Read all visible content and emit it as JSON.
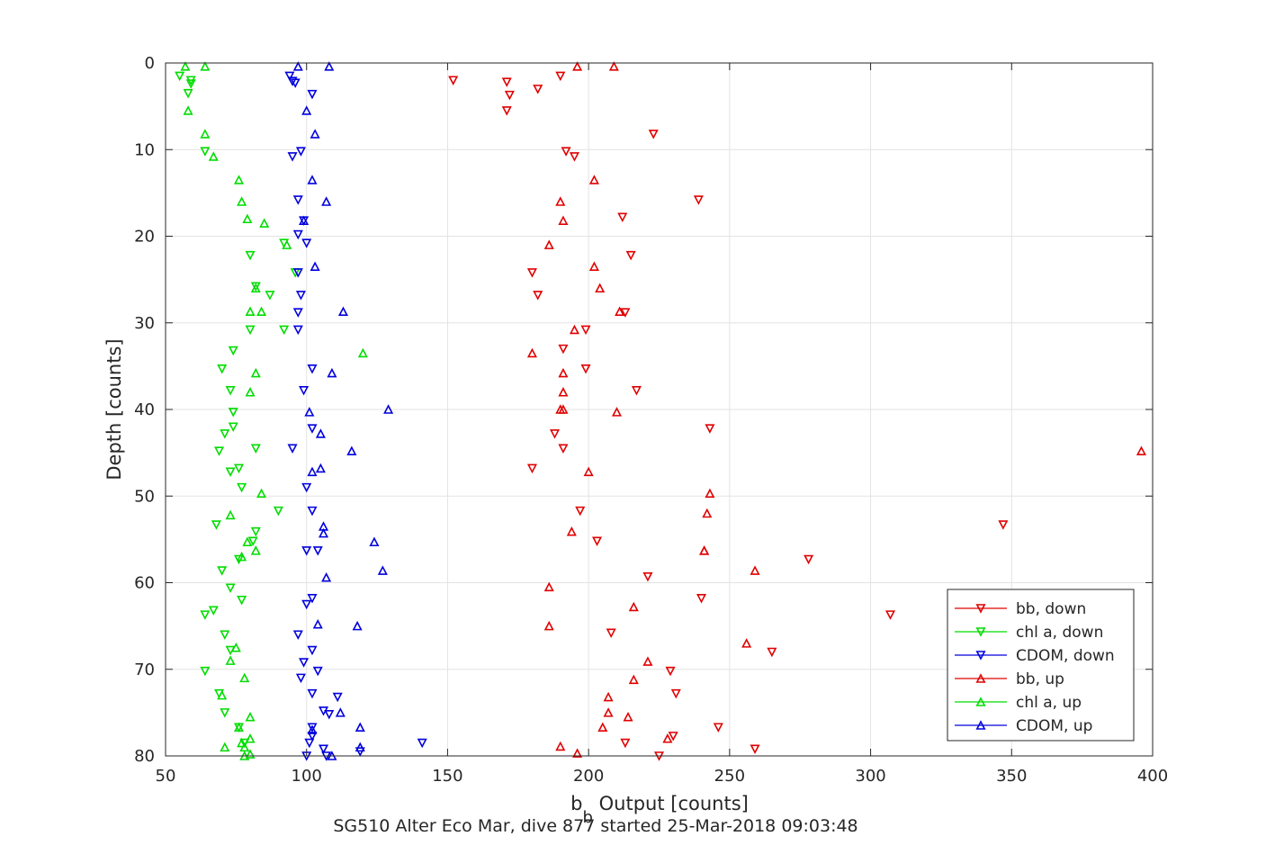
{
  "chart_data": {
    "type": "scatter",
    "title": "",
    "xlabel": "b_b Output [counts]",
    "xlabel_parts": {
      "main": "b",
      "sub": "b",
      "rest": " Output [counts]"
    },
    "ylabel": "Depth [counts]",
    "caption": "SG510 Alter Eco Mar, dive 877 started 25-Mar-2018 09:03:48",
    "xlim": [
      50,
      400
    ],
    "ylim": [
      0,
      80
    ],
    "y_reversed": true,
    "grid": true,
    "legend_position": "bottom-right",
    "x_ticks": [
      50,
      100,
      150,
      200,
      250,
      300,
      350,
      400
    ],
    "y_ticks": [
      0,
      10,
      20,
      30,
      40,
      50,
      60,
      70,
      80
    ],
    "x_tick_labels": [
      "50",
      "100",
      "150",
      "200",
      "250",
      "300",
      "350",
      "400"
    ],
    "y_tick_labels": [
      "0",
      "10",
      "20",
      "30",
      "40",
      "50",
      "60",
      "70",
      "80"
    ],
    "series": [
      {
        "name": "bb, down",
        "color": "#e00000",
        "marker": "triangle-down",
        "x": [
          190,
          152,
          171,
          182,
          172,
          171,
          192,
          195,
          223,
          239,
          212,
          215,
          180,
          182,
          213,
          199,
          191,
          199,
          217,
          188,
          191,
          180,
          243,
          197,
          203,
          347,
          278,
          221,
          240,
          307,
          208,
          265,
          229,
          231,
          230,
          246,
          259,
          225,
          213
        ],
        "y": [
          1.5,
          2,
          2.2,
          3,
          3.7,
          5.5,
          10.2,
          10.8,
          8.2,
          15.8,
          17.8,
          22.2,
          24.2,
          26.8,
          28.8,
          30.8,
          33,
          35.3,
          37.8,
          42.8,
          44.5,
          46.8,
          42.2,
          51.7,
          55.2,
          53.3,
          57.3,
          59.3,
          61.8,
          63.7,
          65.8,
          68,
          70.2,
          72.8,
          77.7,
          76.7,
          79.2,
          80,
          78.5
        ]
      },
      {
        "name": "chl a, down",
        "color": "#00dd00",
        "marker": "triangle-down",
        "x": [
          55,
          59,
          59,
          58,
          64,
          80,
          82,
          92,
          96,
          87,
          92,
          80,
          74,
          70,
          73,
          74,
          71,
          74,
          82,
          69,
          76,
          73,
          77,
          90,
          68,
          81,
          82,
          70,
          76,
          73,
          77,
          64,
          67,
          71,
          73,
          64,
          69,
          71,
          76,
          78
        ],
        "y": [
          1.5,
          2,
          2.4,
          3.5,
          10.2,
          22.2,
          25.8,
          20.8,
          24.2,
          26.8,
          30.8,
          30.8,
          33.2,
          35.3,
          37.8,
          40.3,
          42.8,
          42,
          44.5,
          44.8,
          46.8,
          47.2,
          49,
          51.7,
          53.3,
          55.2,
          54.1,
          58.6,
          57.3,
          60.6,
          62,
          63.7,
          63.2,
          66,
          67.8,
          70.2,
          72.8,
          75,
          76.7,
          78.5
        ]
      },
      {
        "name": "CDOM, down",
        "color": "#0000dd",
        "marker": "triangle-down",
        "x": [
          94,
          95,
          96,
          102,
          98,
          95,
          97,
          99,
          97,
          100,
          97,
          98,
          97,
          97,
          102,
          99,
          102,
          95,
          100,
          102,
          100,
          104,
          102,
          100,
          99,
          102,
          97,
          102,
          104,
          98,
          111,
          106,
          108,
          102,
          102,
          101,
          141,
          107,
          106,
          100,
          119
        ],
        "y": [
          1.5,
          2.1,
          2.3,
          3.6,
          10.2,
          10.8,
          15.8,
          18.2,
          19.8,
          20.8,
          24.2,
          26.8,
          28.8,
          30.8,
          35.3,
          37.8,
          42.2,
          44.5,
          49,
          51.7,
          56.3,
          56.3,
          61.8,
          62.5,
          69.2,
          72.8,
          66,
          67.8,
          70.2,
          71,
          73.2,
          74.8,
          75.2,
          77.7,
          76.7,
          78.5,
          78.5,
          80,
          79.2,
          80,
          79.5
        ]
      },
      {
        "name": "bb, up",
        "color": "#e00000",
        "marker": "triangle-up",
        "x": [
          196,
          209,
          202,
          190,
          191,
          186,
          202,
          204,
          211,
          195,
          180,
          191,
          191,
          190,
          210,
          200,
          243,
          242,
          241,
          194,
          241,
          259,
          186,
          216,
          186,
          256,
          221,
          216,
          207,
          207,
          214,
          205,
          228,
          190,
          196,
          396,
          191
        ],
        "y": [
          0.4,
          0.4,
          13.5,
          16,
          18.2,
          21,
          23.5,
          26,
          28.7,
          30.8,
          33.5,
          35.8,
          38,
          40,
          40.3,
          47.2,
          49.7,
          52,
          56.3,
          54.1,
          56.3,
          58.6,
          60.5,
          62.8,
          65,
          67,
          69.1,
          71.2,
          73.2,
          75,
          75.5,
          76.7,
          78,
          78.9,
          79.7,
          44.8,
          40
        ]
      },
      {
        "name": "chl a, up",
        "color": "#00dd00",
        "marker": "triangle-up",
        "x": [
          57,
          64,
          58,
          64,
          67,
          76,
          77,
          79,
          85,
          93,
          82,
          84,
          80,
          120,
          82,
          80,
          84,
          73,
          79,
          77,
          75,
          82,
          73,
          78,
          70,
          80,
          76,
          77,
          78,
          71,
          80,
          80,
          78
        ],
        "y": [
          0.4,
          0.4,
          5.5,
          8.2,
          10.8,
          13.5,
          16,
          18,
          18.5,
          21,
          26,
          28.7,
          28.7,
          33.5,
          35.8,
          38,
          49.7,
          52.2,
          55.3,
          57,
          67.5,
          56.3,
          69,
          71,
          73,
          75.5,
          76.7,
          78.5,
          79,
          79,
          79.8,
          78,
          80
        ]
      },
      {
        "name": "CDOM, up",
        "color": "#0000dd",
        "marker": "triangle-up",
        "x": [
          97,
          108,
          100,
          103,
          102,
          107,
          99,
          103,
          113,
          109,
          129,
          101,
          105,
          116,
          102,
          105,
          106,
          106,
          124,
          127,
          107,
          104,
          118,
          112,
          109,
          119,
          102,
          119
        ],
        "y": [
          0.4,
          0.4,
          5.5,
          8.2,
          13.5,
          16,
          18.2,
          23.5,
          28.7,
          35.8,
          40,
          40.3,
          42.8,
          44.8,
          47.2,
          46.8,
          53.5,
          54.3,
          55.3,
          58.6,
          59.4,
          64.8,
          65,
          75,
          80,
          76.7,
          77,
          79
        ]
      }
    ]
  }
}
